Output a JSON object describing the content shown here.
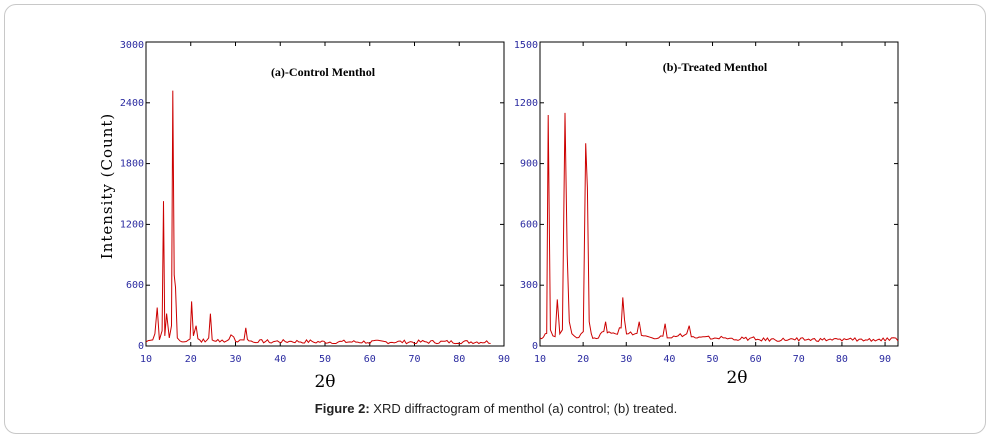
{
  "caption": {
    "label": "Figure 2:",
    "text": " XRD diffractogram of menthol (a) control; (b) treated."
  },
  "colors": {
    "series": "#cc0000",
    "ticks": "#2a2aa0",
    "axes": "#000000"
  },
  "chart_data": [
    {
      "type": "line",
      "title": "(a)-Control Menthol",
      "xlabel": "2θ",
      "ylabel": "Intensity (Count)",
      "xlim": [
        10,
        90
      ],
      "ylim": [
        0,
        3000
      ],
      "xticks": [
        "10",
        "20",
        "30",
        "40",
        "50",
        "60",
        "70",
        "80",
        "90"
      ],
      "yticks": [
        "0",
        "600",
        "1200",
        "1800",
        "2400",
        "3000"
      ],
      "grid": false,
      "series": [
        {
          "x": [
            10,
            11.5,
            12.0,
            12.5,
            13.0,
            13.6,
            13.9,
            14.2,
            14.6,
            15.2,
            15.7,
            16.0,
            16.3,
            16.6,
            17.0,
            17.6,
            18.5,
            19.5,
            20.2,
            20.6,
            21.2,
            22.0,
            23.2,
            24.0,
            24.4,
            25.2,
            26.5,
            28.0,
            29.0,
            29.6,
            30.5,
            31.5,
            32.3,
            33.0,
            35.0,
            38.0,
            42.0,
            45.0,
            48.0,
            52.0,
            60.0,
            70.0,
            80.0,
            87.0
          ],
          "y": [
            40,
            60,
            120,
            380,
            60,
            150,
            1430,
            100,
            320,
            80,
            200,
            2520,
            700,
            580,
            80,
            50,
            40,
            60,
            440,
            100,
            200,
            60,
            40,
            80,
            320,
            50,
            40,
            50,
            110,
            90,
            40,
            60,
            180,
            50,
            35,
            30,
            45,
            30,
            30,
            25,
            25,
            25,
            25,
            25
          ]
        }
      ]
    },
    {
      "type": "line",
      "title": "(b)-Treated Menthol",
      "xlabel": "2θ",
      "ylabel": "",
      "xlim": [
        10,
        93
      ],
      "ylim": [
        0,
        1500
      ],
      "xticks": [
        "10",
        "20",
        "30",
        "40",
        "50",
        "60",
        "70",
        "80",
        "90"
      ],
      "yticks": [
        "0",
        "300",
        "600",
        "900",
        "1200",
        "1500"
      ],
      "grid": false,
      "series": [
        {
          "x": [
            10,
            11.2,
            11.9,
            12.4,
            13.0,
            14.0,
            14.6,
            15.2,
            15.8,
            16.3,
            16.8,
            17.4,
            18.5,
            19.5,
            20.6,
            21.0,
            21.4,
            21.9,
            22.6,
            24.0,
            25.2,
            26.0,
            27.5,
            28.4,
            29.2,
            29.6,
            30.5,
            32.0,
            33.0,
            34.0,
            36.0,
            38.0,
            39.0,
            40.0,
            42.0,
            44.0,
            44.6,
            46.0,
            50.0,
            53.0,
            55.0,
            60.0,
            70.0,
            80.0,
            83.0,
            85.0,
            90.0,
            93.0
          ],
          "y": [
            40,
            60,
            1140,
            80,
            50,
            230,
            60,
            80,
            1150,
            450,
            120,
            60,
            40,
            60,
            1000,
            780,
            120,
            60,
            40,
            60,
            120,
            70,
            60,
            90,
            240,
            130,
            60,
            60,
            120,
            50,
            40,
            50,
            110,
            40,
            50,
            60,
            100,
            40,
            35,
            40,
            30,
            30,
            25,
            25,
            40,
            25,
            25,
            25
          ]
        }
      ]
    }
  ]
}
